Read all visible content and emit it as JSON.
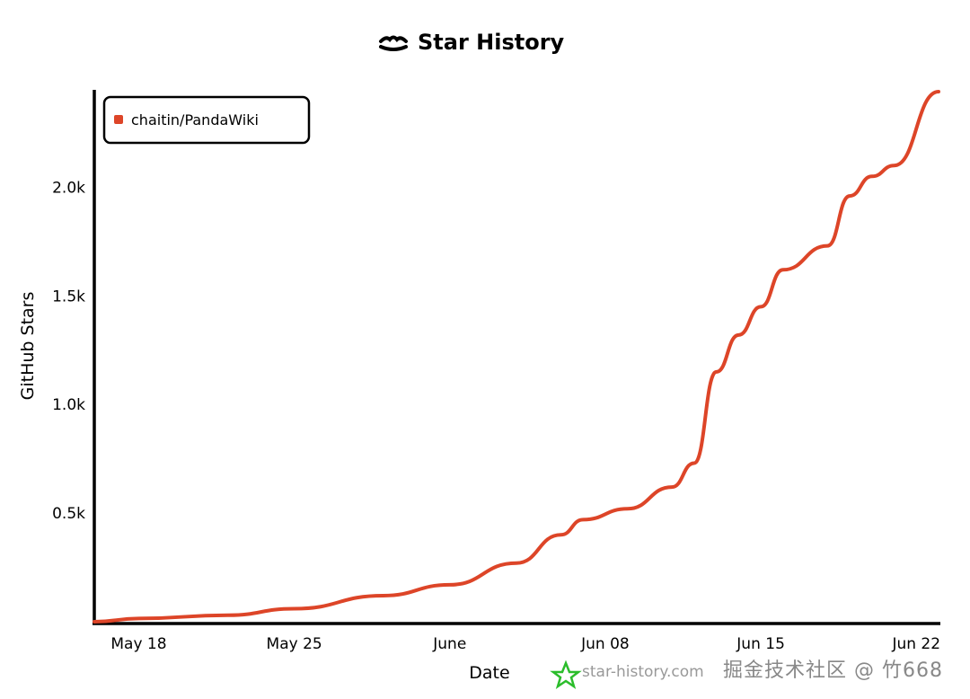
{
  "chart_data": {
    "type": "line",
    "title": "Star History",
    "xlabel": "Date",
    "ylabel": "GitHub Stars",
    "x_ticks": [
      "May 18",
      "May 25",
      "June",
      "Jun 08",
      "Jun 15",
      "Jun 22"
    ],
    "x_tick_dates": [
      "2025-05-18",
      "2025-05-25",
      "2025-06-01",
      "2025-06-08",
      "2025-06-15",
      "2025-06-22"
    ],
    "y_ticks": [
      "0.5k",
      "1.0k",
      "1.5k",
      "2.0k"
    ],
    "y_tick_values": [
      500,
      1000,
      1500,
      2000
    ],
    "xlim": [
      "2025-05-16",
      "2025-06-23"
    ],
    "ylim": [
      0,
      2440
    ],
    "grid": false,
    "legend_position": "top-left",
    "series": [
      {
        "name": "chaitin/PandaWiki",
        "color": "#dd4528",
        "x": [
          "2025-05-16",
          "2025-05-18",
          "2025-05-22",
          "2025-05-25",
          "2025-05-29",
          "2025-06-01",
          "2025-06-04",
          "2025-06-06",
          "2025-06-07",
          "2025-06-09",
          "2025-06-11",
          "2025-06-12",
          "2025-06-13",
          "2025-06-14",
          "2025-06-15",
          "2025-06-16",
          "2025-06-18",
          "2025-06-19",
          "2025-06-20",
          "2025-06-21",
          "2025-06-23"
        ],
        "y": [
          0,
          15,
          30,
          60,
          120,
          170,
          270,
          400,
          470,
          520,
          620,
          730,
          1150,
          1320,
          1450,
          1620,
          1730,
          1960,
          2050,
          2100,
          2440
        ]
      }
    ]
  },
  "watermark": {
    "site": "star-history.com",
    "overlay": "掘金技术社区 @ 竹668"
  }
}
